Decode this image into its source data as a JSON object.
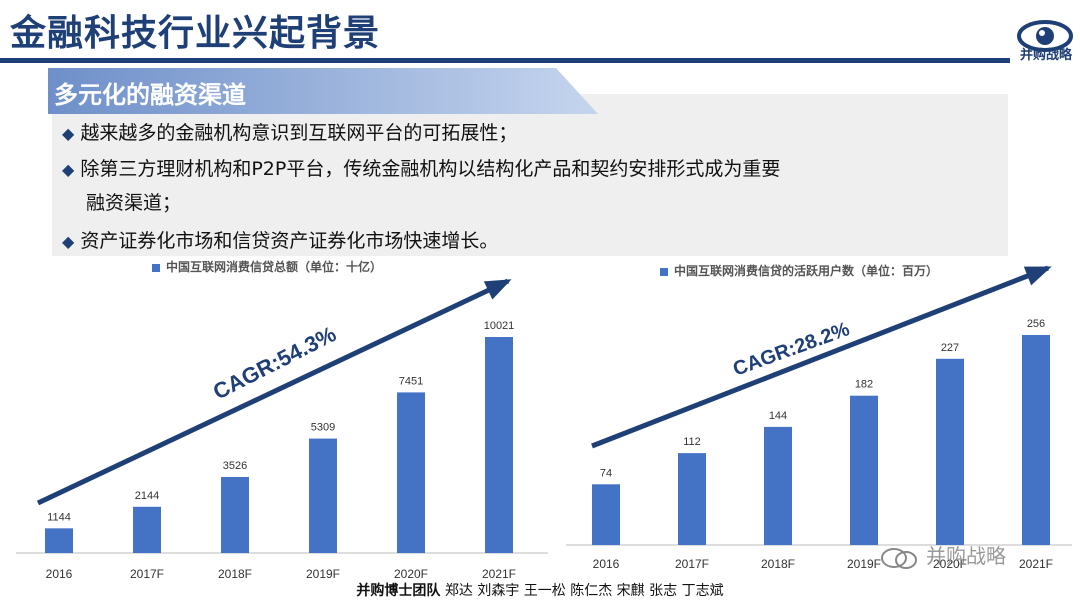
{
  "page": {
    "title": "金融科技行业兴起背景",
    "logo_text": "并购战略",
    "section_title": "多元化的融资渠道",
    "bullets": [
      "越来越多的金融机构意识到互联网平台的可拓展性；",
      "除第三方理财机构和P2P平台，传统金融机构以结构化产品和契约安排形式成为重要",
      "资产证券化市场和信贷资产证券化市场快速增长。"
    ],
    "bullet2_cont": "融资渠道；",
    "footer_bold": "并购博士团队",
    "footer_names": " 郑达 刘森宇 王一松 陈仁杰 宋麒 张志 丁志斌",
    "watermark": "并购战略"
  },
  "colors": {
    "accent": "#1f3f77",
    "bar": "#4472c4"
  },
  "chart_data": [
    {
      "type": "bar",
      "legend": "中国互联网消费信贷总额（单位：十亿）",
      "categories": [
        "2016",
        "2017F",
        "2018F",
        "2019F",
        "2020F",
        "2021F"
      ],
      "values": [
        1144,
        2144,
        3526,
        5309,
        7451,
        10021
      ],
      "annotation": "CAGR:54.3%",
      "ylim": [
        0,
        10021
      ]
    },
    {
      "type": "bar",
      "legend": "中国互联网消费信贷的活跃用户数（单位：百万）",
      "categories": [
        "2016",
        "2017F",
        "2018F",
        "2019F",
        "2020F",
        "2021F"
      ],
      "values": [
        74,
        112,
        144,
        182,
        227,
        256
      ],
      "annotation": "CAGR:28.2%",
      "ylim": [
        0,
        256
      ]
    }
  ]
}
